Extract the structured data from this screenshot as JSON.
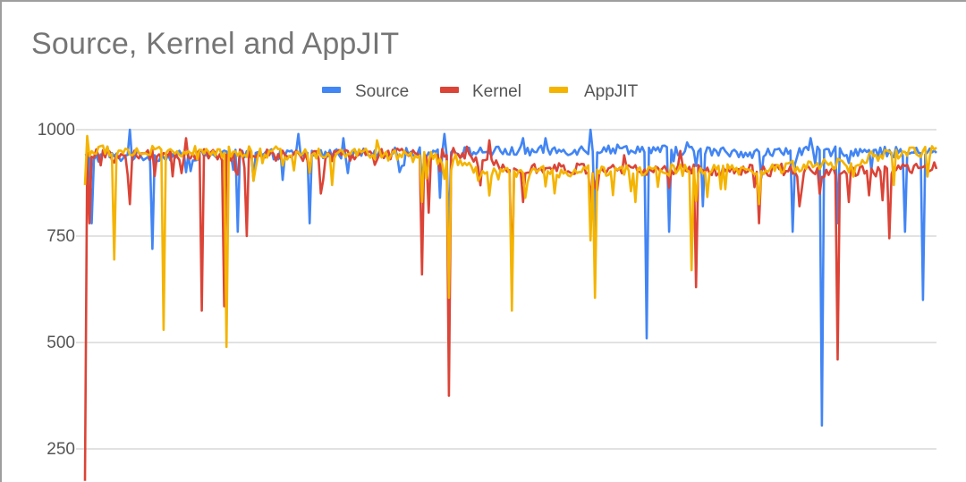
{
  "chart_data": {
    "type": "line",
    "title": "Source, Kernel and AppJIT",
    "xlabel": "",
    "ylabel": "",
    "ylim": [
      180,
      1040
    ],
    "yticks": [
      1000,
      750,
      500,
      250
    ],
    "ytick_labels": [
      "1000",
      "750",
      "500",
      "250"
    ],
    "grid": true,
    "legend_position": "top",
    "x_points": 380,
    "series": [
      {
        "name": "Source",
        "color": "#4285f4",
        "baseline": [
          [
            0,
            935
          ],
          [
            120,
            945
          ],
          [
            200,
            950
          ],
          [
            240,
            955
          ],
          [
            300,
            945
          ],
          [
            340,
            950
          ],
          [
            379,
            945
          ]
        ],
        "noise": 12,
        "spikes": [
          [
            3,
            780
          ],
          [
            10,
            960
          ],
          [
            20,
            1000
          ],
          [
            30,
            720
          ],
          [
            45,
            900
          ],
          [
            60,
            940
          ],
          [
            68,
            760
          ],
          [
            75,
            880
          ],
          [
            95,
            990
          ],
          [
            100,
            780
          ],
          [
            115,
            980
          ],
          [
            150,
            870
          ],
          [
            158,
            840
          ],
          [
            160,
            990
          ],
          [
            162,
            750
          ],
          [
            195,
            980
          ],
          [
            205,
            980
          ],
          [
            225,
            1000
          ],
          [
            227,
            760
          ],
          [
            250,
            510
          ],
          [
            260,
            760
          ],
          [
            268,
            970
          ],
          [
            275,
            820
          ],
          [
            315,
            760
          ],
          [
            323,
            980
          ],
          [
            325,
            920
          ],
          [
            328,
            305
          ],
          [
            335,
            780
          ],
          [
            365,
            760
          ],
          [
            373,
            600
          ]
        ]
      },
      {
        "name": "Kernel",
        "color": "#db4437",
        "baseline": [
          [
            0,
            940
          ],
          [
            120,
            940
          ],
          [
            165,
            945
          ],
          [
            175,
            920
          ],
          [
            200,
            910
          ],
          [
            240,
            905
          ],
          [
            300,
            905
          ],
          [
            340,
            900
          ],
          [
            379,
            910
          ]
        ],
        "noise": 14,
        "spikes": [
          [
            0,
            175
          ],
          [
            2,
            780
          ],
          [
            20,
            825
          ],
          [
            45,
            980
          ],
          [
            52,
            575
          ],
          [
            62,
            585
          ],
          [
            72,
            750
          ],
          [
            105,
            850
          ],
          [
            150,
            660
          ],
          [
            153,
            805
          ],
          [
            162,
            375
          ],
          [
            170,
            960
          ],
          [
            180,
            975
          ],
          [
            190,
            640
          ],
          [
            195,
            830
          ],
          [
            225,
            830
          ],
          [
            240,
            940
          ],
          [
            265,
            950
          ],
          [
            272,
            630
          ],
          [
            300,
            780
          ],
          [
            310,
            920
          ],
          [
            318,
            820
          ],
          [
            335,
            460
          ],
          [
            340,
            830
          ],
          [
            358,
            745
          ]
        ]
      },
      {
        "name": "AppJIT",
        "color": "#f4b400",
        "baseline": [
          [
            0,
            950
          ],
          [
            120,
            945
          ],
          [
            165,
            930
          ],
          [
            175,
            895
          ],
          [
            200,
            900
          ],
          [
            240,
            905
          ],
          [
            300,
            905
          ],
          [
            340,
            925
          ],
          [
            360,
            945
          ],
          [
            379,
            950
          ]
        ],
        "noise": 14,
        "spikes": [
          [
            0,
            870
          ],
          [
            1,
            985
          ],
          [
            10,
            960
          ],
          [
            13,
            695
          ],
          [
            35,
            530
          ],
          [
            50,
            930
          ],
          [
            63,
            490
          ],
          [
            64,
            960
          ],
          [
            75,
            880
          ],
          [
            90,
            930
          ],
          [
            110,
            870
          ],
          [
            130,
            975
          ],
          [
            150,
            830
          ],
          [
            162,
            605
          ],
          [
            163,
            905
          ],
          [
            175,
            880
          ],
          [
            190,
            575
          ],
          [
            196,
            840
          ],
          [
            225,
            740
          ],
          [
            227,
            605
          ],
          [
            245,
            830
          ],
          [
            270,
            670
          ],
          [
            285,
            860
          ],
          [
            300,
            825
          ],
          [
            340,
            900
          ],
          [
            360,
            870
          ],
          [
            375,
            890
          ]
        ]
      }
    ]
  }
}
